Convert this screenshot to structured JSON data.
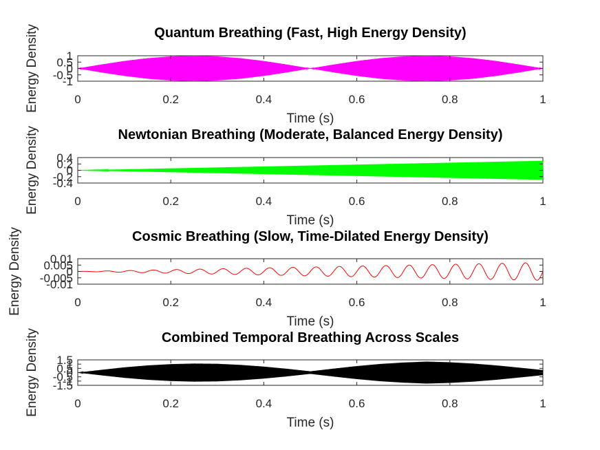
{
  "figure": {
    "background": "#ffffff"
  },
  "chart_data": [
    {
      "type": "line",
      "title": "Quantum Breathing (Fast, High Energy Density)",
      "xlabel": "Time (s)",
      "ylabel": "Energy Density",
      "xlim": [
        0,
        1
      ],
      "ylim": [
        -1,
        1
      ],
      "xticks": [
        "0",
        "0.2",
        "0.4",
        "0.6",
        "0.8",
        "1"
      ],
      "yticks": [
        "-1",
        "-0.5",
        "0",
        "0.5",
        "1"
      ],
      "color": "#ff00ff",
      "series": [
        {
          "x": [
            0,
            0.05,
            0.1,
            0.15,
            0.2,
            0.25,
            0.3,
            0.35,
            0.4,
            0.45,
            0.5,
            0.55,
            0.6,
            0.65,
            0.7,
            0.75,
            0.8,
            0.85,
            0.9,
            0.95,
            1.0
          ],
          "envelope": [
            0.0,
            0.31,
            0.59,
            0.81,
            0.95,
            1.0,
            0.95,
            0.81,
            0.59,
            0.31,
            0.0,
            0.31,
            0.59,
            0.81,
            0.95,
            1.0,
            0.95,
            0.81,
            0.59,
            0.31,
            0.0
          ]
        }
      ]
    },
    {
      "type": "line",
      "title": "Newtonian Breathing (Moderate, Balanced Energy Density)",
      "xlabel": "Time (s)",
      "ylabel": "Energy Density",
      "xlim": [
        0,
        1
      ],
      "ylim": [
        -0.4,
        0.4
      ],
      "xticks": [
        "0",
        "0.2",
        "0.4",
        "0.6",
        "0.8",
        "1"
      ],
      "yticks": [
        "-0.4",
        "-0.2",
        "0",
        "0.2",
        "0.4"
      ],
      "color": "#00ff00",
      "series": [
        {
          "x": [
            0,
            0.1,
            0.2,
            0.3,
            0.4,
            0.5,
            0.6,
            0.7,
            0.8,
            0.9,
            1.0
          ],
          "envelope": [
            0.0,
            0.03,
            0.06,
            0.09,
            0.12,
            0.15,
            0.18,
            0.21,
            0.24,
            0.27,
            0.3
          ]
        }
      ]
    },
    {
      "type": "line",
      "title": "Cosmic Breathing (Slow, Time-Dilated Energy Density)",
      "xlabel": "Time (s)",
      "ylabel": "Energy Density",
      "xlim": [
        0,
        1
      ],
      "ylim": [
        -0.01,
        0.01
      ],
      "xticks": [
        "0",
        "0.2",
        "0.4",
        "0.6",
        "0.8",
        "1"
      ],
      "yticks": [
        "-0.01",
        "-0.005",
        "0",
        "0.005",
        "0.01"
      ],
      "color": "#ff0000",
      "series": [
        {
          "x": [
            0,
            0.1,
            0.2,
            0.3,
            0.4,
            0.5,
            0.6,
            0.7,
            0.8,
            0.9,
            1.0
          ],
          "envelope": [
            0.0,
            0.0007,
            0.0014,
            0.0021,
            0.0028,
            0.0035,
            0.0042,
            0.0049,
            0.0056,
            0.0063,
            0.007
          ],
          "cycles": 20
        }
      ]
    },
    {
      "type": "line",
      "title": "Combined Temporal Breathing Across Scales",
      "xlabel": "Time (s)",
      "ylabel": "Energy Density",
      "xlim": [
        0,
        1
      ],
      "ylim": [
        -1.5,
        1.5
      ],
      "xticks": [
        "0",
        "0.2",
        "0.4",
        "0.6",
        "0.8",
        "1"
      ],
      "yticks": [
        "-1.5",
        "-1",
        "-0.5",
        "0",
        "0.5",
        "1",
        "1.5"
      ],
      "color": "#000000",
      "series": [
        {
          "x": [
            0,
            0.05,
            0.1,
            0.15,
            0.2,
            0.25,
            0.3,
            0.35,
            0.4,
            0.45,
            0.5,
            0.55,
            0.6,
            0.65,
            0.7,
            0.75,
            0.8,
            0.85,
            0.9,
            0.95,
            1.0
          ],
          "envelope": [
            0.0,
            0.32,
            0.62,
            0.85,
            1.0,
            1.07,
            1.04,
            0.91,
            0.71,
            0.45,
            0.15,
            0.47,
            0.77,
            1.02,
            1.19,
            1.3,
            1.22,
            1.07,
            0.85,
            0.58,
            0.3
          ]
        }
      ]
    }
  ]
}
